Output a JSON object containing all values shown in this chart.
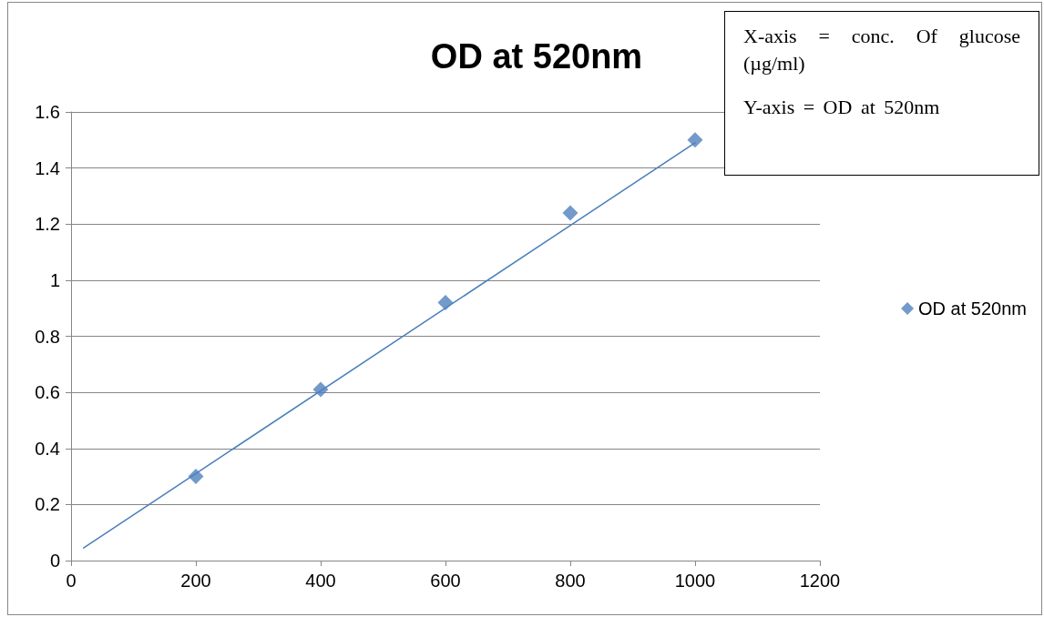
{
  "chart_data": {
    "type": "scatter",
    "title": "OD at 520nm",
    "annotations": [
      "X-axis = conc. Of glucose (µg/ml)",
      "Y-axis = OD at 520nm"
    ],
    "series": [
      {
        "name": "OD at 520nm",
        "color": "#4f81bd",
        "marker": "diamond",
        "x": [
          200,
          400,
          600,
          800,
          1000
        ],
        "values": [
          0.3,
          0.61,
          0.92,
          1.24,
          1.5
        ]
      },
      {
        "type": "line",
        "color": "#4a7ebb",
        "marker": "none",
        "x": [
          20,
          1000
        ],
        "values": [
          0.045,
          1.49
        ]
      }
    ],
    "xlim": [
      0,
      1200
    ],
    "xticks": [
      0,
      200,
      400,
      600,
      800,
      1000,
      1200
    ],
    "ylim": [
      0,
      1.6
    ],
    "yticks": [
      0,
      0.2,
      0.4,
      0.6,
      0.8,
      1,
      1.2,
      1.4,
      1.6
    ],
    "grid": "y",
    "legend": "right"
  }
}
